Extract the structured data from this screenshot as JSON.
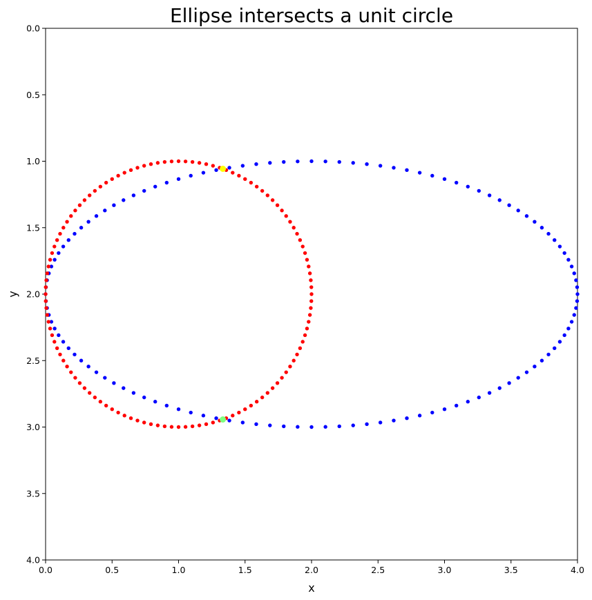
{
  "chart_data": {
    "type": "scatter",
    "title": "Ellipse intersects a unit circle",
    "xlabel": "x",
    "ylabel": "y",
    "xlim": [
      0,
      4
    ],
    "ylim": [
      0,
      4
    ],
    "y_inverted": true,
    "grid": false,
    "legend": "none",
    "xticks": [
      "0.0",
      "0.5",
      "1.0",
      "1.5",
      "2.0",
      "2.5",
      "3.0",
      "3.5",
      "4.0"
    ],
    "yticks": [
      "0.0",
      "0.5",
      "1.0",
      "1.5",
      "2.0",
      "2.5",
      "3.0",
      "3.5",
      "4.0"
    ],
    "series": [
      {
        "shape": "ellipse",
        "center": [
          2,
          2
        ],
        "semi_axes": [
          2,
          1
        ],
        "n_points": 120,
        "color": "#0000ff"
      },
      {
        "shape": "circle",
        "center": [
          1,
          2
        ],
        "radius": 1,
        "n_points": 120,
        "color": "#ff0000"
      }
    ],
    "intersections": [
      {
        "x": 1.333,
        "y": 1.057,
        "color": "#ffff00"
      },
      {
        "x": 1.333,
        "y": 2.943,
        "color": "#7fff7f"
      }
    ]
  }
}
